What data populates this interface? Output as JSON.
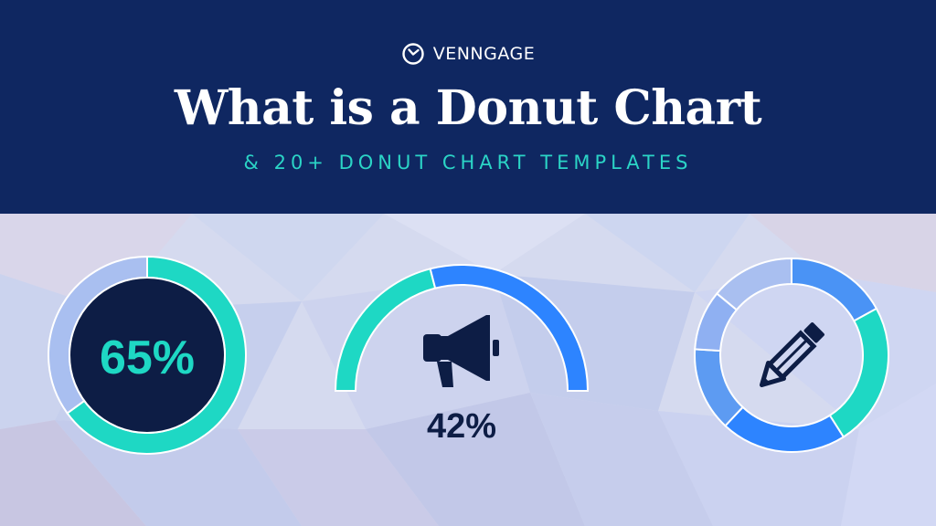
{
  "brand": {
    "name": "VENNGAGE",
    "icon": "clock-logo-icon"
  },
  "header": {
    "title": "What is a Donut Chart",
    "subtitle": "& 20+ DONUT CHART TEMPLATES",
    "background": "#0f2761",
    "subtitle_color": "#2bd4c6"
  },
  "colors": {
    "teal": "#1ed8c4",
    "blue": "#2d84ff",
    "mid_blue": "#4a93f5",
    "light_blue": "#a9bff0",
    "navy": "#0d1d45",
    "outline": "#ffffff"
  },
  "chart_data": [
    {
      "type": "pie",
      "variant": "donut",
      "values": [
        65,
        35
      ],
      "colors": [
        "#1ed8c4",
        "#a9bff0"
      ],
      "center_label": "65%",
      "center_style": "filled-navy"
    },
    {
      "type": "pie",
      "variant": "half-donut",
      "values": [
        42,
        58
      ],
      "colors": [
        "#1ed8c4",
        "#2d84ff"
      ],
      "center_icon": "megaphone-icon",
      "label": "42%"
    },
    {
      "type": "pie",
      "variant": "donut",
      "values": [
        17,
        24,
        21,
        14,
        10,
        14
      ],
      "colors": [
        "#4a93f5",
        "#1ed8c4",
        "#2d84ff",
        "#5d9bf2",
        "#8fb0f2",
        "#a9bff0"
      ],
      "center_icon": "pencil-icon"
    }
  ]
}
